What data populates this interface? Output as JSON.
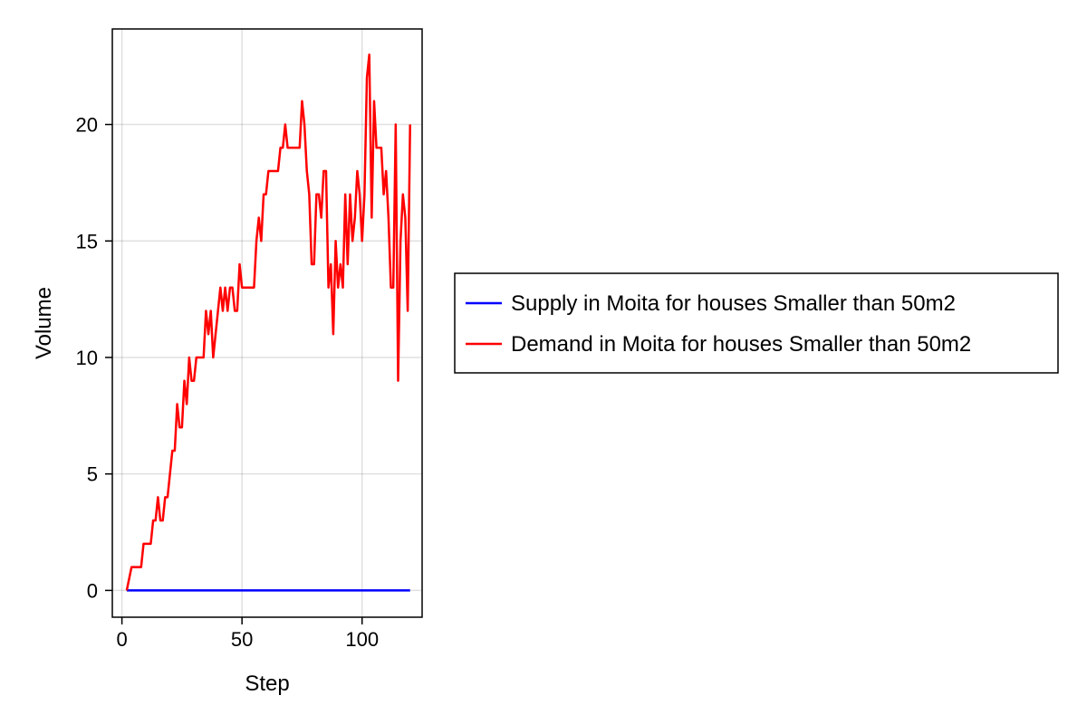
{
  "chart_data": {
    "type": "line",
    "title": "",
    "xlabel": "Step",
    "ylabel": "Volume",
    "xlim": [
      -4,
      125
    ],
    "ylim": [
      -1.15,
      24.1
    ],
    "xticks": [
      0,
      50,
      100
    ],
    "yticks": [
      0,
      5,
      10,
      15,
      20
    ],
    "grid": true,
    "legend_position": "right-center",
    "series": [
      {
        "name": "Supply in Moita for houses Smaller than 50m2",
        "color": "#0000ff",
        "points": [
          [
            2,
            0
          ],
          [
            120,
            0
          ]
        ]
      },
      {
        "name": "Demand in Moita for houses Smaller than 50m2",
        "color": "#ff0000",
        "points": [
          [
            2,
            0
          ],
          [
            4,
            1
          ],
          [
            6,
            1
          ],
          [
            8,
            1
          ],
          [
            9,
            2
          ],
          [
            12,
            2
          ],
          [
            13,
            3
          ],
          [
            14,
            3
          ],
          [
            15,
            4
          ],
          [
            16,
            3
          ],
          [
            17,
            3
          ],
          [
            18,
            4
          ],
          [
            19,
            4
          ],
          [
            20,
            5
          ],
          [
            21,
            6
          ],
          [
            22,
            6
          ],
          [
            23,
            8
          ],
          [
            24,
            7
          ],
          [
            25,
            7
          ],
          [
            26,
            9
          ],
          [
            27,
            8
          ],
          [
            28,
            10
          ],
          [
            29,
            9
          ],
          [
            30,
            9
          ],
          [
            31,
            10
          ],
          [
            34,
            10
          ],
          [
            35,
            12
          ],
          [
            36,
            11
          ],
          [
            37,
            12
          ],
          [
            38,
            10
          ],
          [
            39,
            11
          ],
          [
            40,
            12
          ],
          [
            41,
            13
          ],
          [
            42,
            12
          ],
          [
            43,
            13
          ],
          [
            44,
            12
          ],
          [
            45,
            13
          ],
          [
            46,
            13
          ],
          [
            47,
            12
          ],
          [
            48,
            12
          ],
          [
            49,
            14
          ],
          [
            50,
            13
          ],
          [
            51,
            13
          ],
          [
            55,
            13
          ],
          [
            56,
            15
          ],
          [
            57,
            16
          ],
          [
            58,
            15
          ],
          [
            59,
            17
          ],
          [
            60,
            17
          ],
          [
            61,
            18
          ],
          [
            65,
            18
          ],
          [
            66,
            19
          ],
          [
            67,
            19
          ],
          [
            68,
            20
          ],
          [
            69,
            19
          ],
          [
            74,
            19
          ],
          [
            75,
            21
          ],
          [
            76,
            20
          ],
          [
            77,
            18
          ],
          [
            78,
            17
          ],
          [
            79,
            14
          ],
          [
            80,
            14
          ],
          [
            81,
            17
          ],
          [
            82,
            17
          ],
          [
            83,
            16
          ],
          [
            84,
            18
          ],
          [
            85,
            18
          ],
          [
            86,
            13
          ],
          [
            87,
            14
          ],
          [
            88,
            11
          ],
          [
            89,
            15
          ],
          [
            90,
            13
          ],
          [
            91,
            14
          ],
          [
            92,
            13
          ],
          [
            93,
            17
          ],
          [
            94,
            14
          ],
          [
            95,
            17
          ],
          [
            96,
            15
          ],
          [
            97,
            16
          ],
          [
            98,
            18
          ],
          [
            99,
            17
          ],
          [
            100,
            15
          ],
          [
            101,
            17
          ],
          [
            102,
            22
          ],
          [
            103,
            23
          ],
          [
            104,
            16
          ],
          [
            105,
            21
          ],
          [
            106,
            19
          ],
          [
            108,
            19
          ],
          [
            109,
            17
          ],
          [
            110,
            18
          ],
          [
            111,
            16
          ],
          [
            112,
            13
          ],
          [
            113,
            13
          ],
          [
            114,
            20
          ],
          [
            115,
            9
          ],
          [
            116,
            15
          ],
          [
            117,
            17
          ],
          [
            118,
            16
          ],
          [
            119,
            12
          ],
          [
            120,
            20
          ]
        ]
      }
    ]
  }
}
